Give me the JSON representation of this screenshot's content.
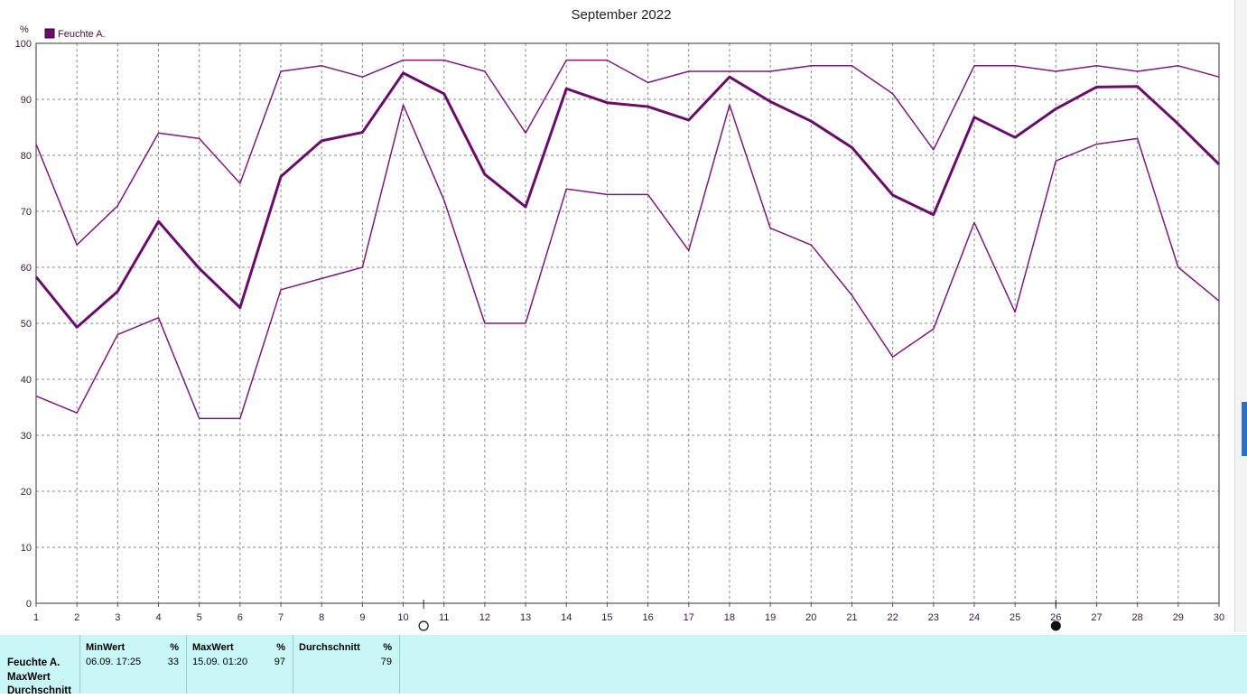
{
  "chart_data": {
    "type": "line",
    "title": "September 2022",
    "ylabel": "%",
    "legend": {
      "entries": [
        "Feuchte A."
      ],
      "placement": "top-left",
      "color": "#6a0d6a"
    },
    "xlim": [
      1,
      30
    ],
    "ylim": [
      0,
      100
    ],
    "grid": true,
    "x_ticks": [
      1,
      2,
      3,
      4,
      5,
      6,
      7,
      8,
      9,
      10,
      11,
      12,
      13,
      14,
      15,
      16,
      17,
      18,
      19,
      20,
      21,
      22,
      23,
      24,
      25,
      26,
      27,
      28,
      29,
      30
    ],
    "y_ticks": [
      0,
      10,
      20,
      30,
      40,
      50,
      60,
      70,
      80,
      90,
      100
    ],
    "x": [
      1,
      2,
      3,
      4,
      5,
      6,
      7,
      8,
      9,
      10,
      11,
      12,
      13,
      14,
      15,
      16,
      17,
      18,
      19,
      20,
      21,
      22,
      23,
      24,
      25,
      26,
      27,
      28,
      29,
      30
    ],
    "series": [
      {
        "values": [
          82,
          64,
          71,
          84,
          83,
          75,
          95,
          96,
          94,
          97,
          97,
          95,
          84,
          97,
          97,
          93,
          95,
          95,
          95,
          96,
          96,
          91,
          81,
          96,
          96,
          95,
          96,
          95,
          96,
          94
        ],
        "color": "#7a1a7a",
        "width": 1.5
      },
      {
        "values": [
          58.3,
          49.3,
          55.7,
          68.2,
          59.8,
          52.8,
          76.2,
          82.6,
          84.1,
          94.7,
          91,
          76.6,
          70.8,
          91.9,
          89.4,
          88.7,
          86.3,
          94,
          89.6,
          86.1,
          81.4,
          72.9,
          69.4,
          86.8,
          83.2,
          88.3,
          92.2,
          92.3,
          85.6,
          78.4
        ],
        "color": "#6a0d6a",
        "width": 3
      },
      {
        "values": [
          37,
          34,
          48,
          51,
          33,
          33,
          56,
          58,
          60,
          89,
          72,
          50,
          50,
          74,
          73,
          73,
          63,
          89,
          67,
          64,
          55,
          44,
          49,
          68,
          52,
          79,
          82,
          83,
          60,
          54
        ],
        "color": "#7a1a7a",
        "width": 1.5
      }
    ],
    "moon_phases": [
      {
        "day": 10.5,
        "phase": "full-moon"
      },
      {
        "day": 26,
        "phase": "new-moon"
      }
    ]
  },
  "stats": {
    "row_labels": [
      "Feuchte A.",
      "MaxWert",
      "Durchschnitt"
    ],
    "min": {
      "header": "MinWert",
      "unit": "%",
      "timestamp": "06.09.  17:25",
      "value": "33"
    },
    "max": {
      "header": "MaxWert",
      "unit": "%",
      "timestamp": "15.09.  01:20",
      "value": "97"
    },
    "avg": {
      "header": "Durchschnitt",
      "unit": "%",
      "value": "79"
    }
  }
}
